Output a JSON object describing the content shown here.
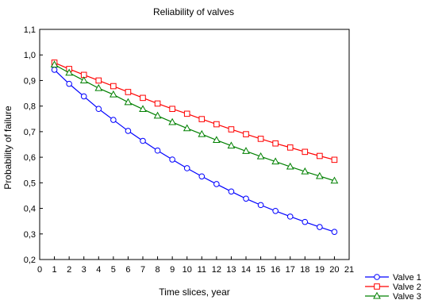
{
  "chart_data": {
    "type": "line",
    "title": "Reliability  of  valves",
    "xlabel": "Time slices,  year",
    "ylabel": "Probability of failure",
    "xlim": [
      0,
      21
    ],
    "ylim": [
      0.2,
      1.1
    ],
    "xticks": [
      0,
      1,
      2,
      3,
      4,
      5,
      6,
      7,
      8,
      9,
      10,
      11,
      12,
      13,
      14,
      15,
      16,
      17,
      18,
      19,
      20,
      21
    ],
    "xtick_labels": [
      "0",
      "1",
      "2",
      "3",
      "4",
      "5",
      "6",
      "7",
      "8",
      "9",
      "10",
      "11",
      "12",
      "13",
      "14",
      "15",
      "16",
      "17",
      "18",
      "19",
      "20",
      "21"
    ],
    "yticks": [
      0.2,
      0.3,
      0.4,
      0.5,
      0.6,
      0.7,
      0.8,
      0.9,
      1.0,
      1.1
    ],
    "ytick_labels": [
      "0,2",
      "0,3",
      "0,4",
      "0,5",
      "0,6",
      "0,7",
      "0,8",
      "0,9",
      "1,0",
      "1,1"
    ],
    "grid": false,
    "legend_position": "bottom-right-outside",
    "x": [
      1,
      2,
      3,
      4,
      5,
      6,
      7,
      8,
      9,
      10,
      11,
      12,
      13,
      14,
      15,
      16,
      17,
      18,
      19,
      20
    ],
    "series": [
      {
        "name": "Valve 1",
        "color": "#0000ff",
        "marker": "circle",
        "values": [
          0.942,
          0.887,
          0.838,
          0.789,
          0.746,
          0.703,
          0.664,
          0.626,
          0.591,
          0.557,
          0.525,
          0.495,
          0.466,
          0.438,
          0.413,
          0.39,
          0.368,
          0.347,
          0.327,
          0.308
        ]
      },
      {
        "name": "Valve 2",
        "color": "#ff0000",
        "marker": "square",
        "values": [
          0.97,
          0.945,
          0.922,
          0.9,
          0.878,
          0.855,
          0.832,
          0.81,
          0.789,
          0.77,
          0.749,
          0.729,
          0.709,
          0.69,
          0.672,
          0.654,
          0.638,
          0.621,
          0.605,
          0.59
        ]
      },
      {
        "name": "Valve 3",
        "color": "#008000",
        "marker": "triangle",
        "values": [
          0.962,
          0.93,
          0.9,
          0.87,
          0.845,
          0.815,
          0.788,
          0.762,
          0.737,
          0.713,
          0.69,
          0.667,
          0.645,
          0.624,
          0.603,
          0.583,
          0.563,
          0.544,
          0.526,
          0.508
        ]
      }
    ]
  }
}
